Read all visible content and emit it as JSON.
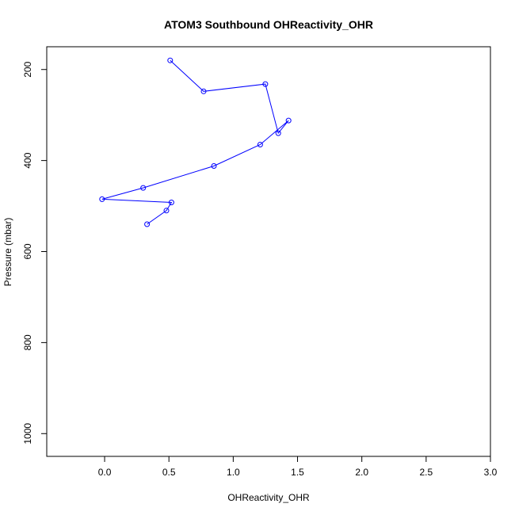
{
  "chart_data": {
    "type": "scatter",
    "title": "ATOM3 Southbound OHReactivity_OHR",
    "xlabel": "OHReactivity_OHR",
    "ylabel": "Pressure (mbar)",
    "xlim": [
      -0.45,
      3.0
    ],
    "ylim": [
      1050,
      150
    ],
    "y_inverted": true,
    "grid": false,
    "legend": "none",
    "x_ticks": [
      "0.0",
      "0.5",
      "1.0",
      "1.5",
      "2.0",
      "2.5",
      "3.0"
    ],
    "x_tick_values": [
      0.0,
      0.5,
      1.0,
      1.5,
      2.0,
      2.5,
      3.0
    ],
    "y_ticks": [
      "200",
      "400",
      "600",
      "800",
      "1000"
    ],
    "y_tick_values": [
      200,
      400,
      600,
      800,
      1000
    ],
    "colors": {
      "series": "#0000ff",
      "axis": "#000000"
    },
    "series": [
      {
        "style": "line+open-circle",
        "x": [
          0.51,
          0.77,
          1.25,
          1.35,
          1.43,
          1.21,
          0.85,
          0.3,
          -0.02,
          0.52,
          0.48,
          0.33
        ],
        "y": [
          180,
          248,
          232,
          340,
          312,
          365,
          412,
          460,
          485,
          492,
          510,
          540
        ],
        "points": [
          [
            0.51,
            180
          ],
          [
            0.77,
            248
          ],
          [
            1.25,
            232
          ],
          [
            1.35,
            340
          ],
          [
            1.43,
            312
          ],
          [
            1.21,
            365
          ],
          [
            0.85,
            412
          ],
          [
            0.3,
            460
          ],
          [
            -0.02,
            485
          ],
          [
            0.52,
            492
          ],
          [
            0.48,
            510
          ],
          [
            0.33,
            540
          ]
        ]
      }
    ]
  }
}
